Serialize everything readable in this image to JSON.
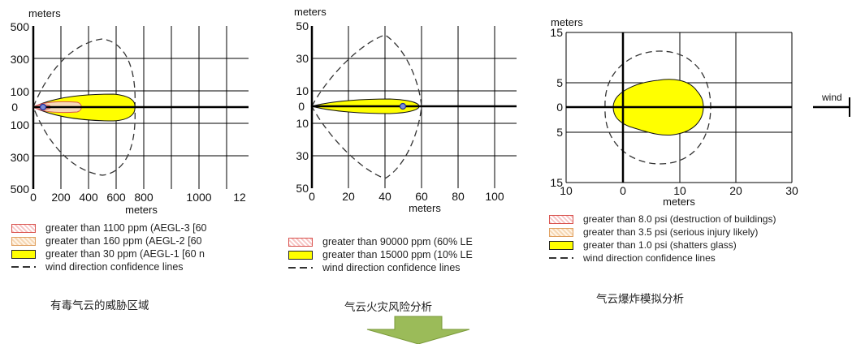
{
  "chart_data": [
    {
      "type": "area",
      "xlabel": "meters",
      "ylabel": "meters",
      "x_ticks": [
        "0",
        "200",
        "400",
        "600",
        "800",
        "1000",
        "12"
      ],
      "y_ticks": [
        "500",
        "300",
        "100",
        "0",
        "100",
        "300",
        "500"
      ],
      "xlim": [
        0,
        1200
      ],
      "ylim": [
        -500,
        500
      ],
      "grid": true,
      "zones": [
        {
          "name": "greater than 1100 ppm (AEGL-3 [60",
          "x": [
            0,
            80
          ],
          "half_width": 12,
          "style": "red-dots"
        },
        {
          "name": "greater than 160 ppm (AEGL-2 [60",
          "x": [
            0,
            250
          ],
          "half_width": 40,
          "style": "orange-dots"
        },
        {
          "name": "greater than 30 ppm (AEGL-1 [60 n",
          "x": [
            0,
            560
          ],
          "half_width": 90,
          "style": "yellow"
        }
      ],
      "confidence_lines": {
        "name": "wind direction confidence lines",
        "x_end": 560,
        "half_width": 400
      },
      "marker_x": 50,
      "caption": "有毒气云的威胁区域"
    },
    {
      "type": "area",
      "xlabel": "meters",
      "ylabel": "meters",
      "x_ticks": [
        "0",
        "20",
        "40",
        "60",
        "80",
        "100"
      ],
      "y_ticks": [
        "50",
        "30",
        "10",
        "0",
        "10",
        "30",
        "50"
      ],
      "xlim": [
        0,
        110
      ],
      "ylim": [
        -50,
        50
      ],
      "grid": true,
      "zones": [
        {
          "name": "greater than 90000 ppm (60% LE",
          "style": "red-dots"
        },
        {
          "name": "greater than 15000 ppm (10% LE",
          "x": [
            0,
            60
          ],
          "half_width": 4,
          "style": "yellow"
        }
      ],
      "confidence_lines": {
        "name": "wind direction confidence lines",
        "x_end": 60,
        "half_width": 45
      },
      "marker_x": 50,
      "caption": "气云火灾风险分析"
    },
    {
      "type": "area",
      "xlabel": "meters",
      "ylabel": "meters",
      "x_ticks": [
        "10",
        "0",
        "10",
        "20",
        "30"
      ],
      "y_ticks": [
        "15",
        "5",
        "0",
        "5",
        "15"
      ],
      "xlim": [
        -10,
        30
      ],
      "ylim": [
        -15,
        15
      ],
      "grid": true,
      "zones": [
        {
          "name": "greater than 8.0 psi (destruction of buildings)",
          "style": "red-dots"
        },
        {
          "name": "greater than 3.5 psi (serious injury likely)",
          "style": "orange-dots"
        },
        {
          "name": "greater than 1.0 psi (shatters glass)",
          "x": [
            -1.7,
            14
          ],
          "half_width": 6,
          "style": "yellow"
        }
      ],
      "confidence_lines": {
        "name": "wind direction confidence lines"
      },
      "wind_label": "wind",
      "caption": "气云爆炸模拟分析"
    }
  ]
}
